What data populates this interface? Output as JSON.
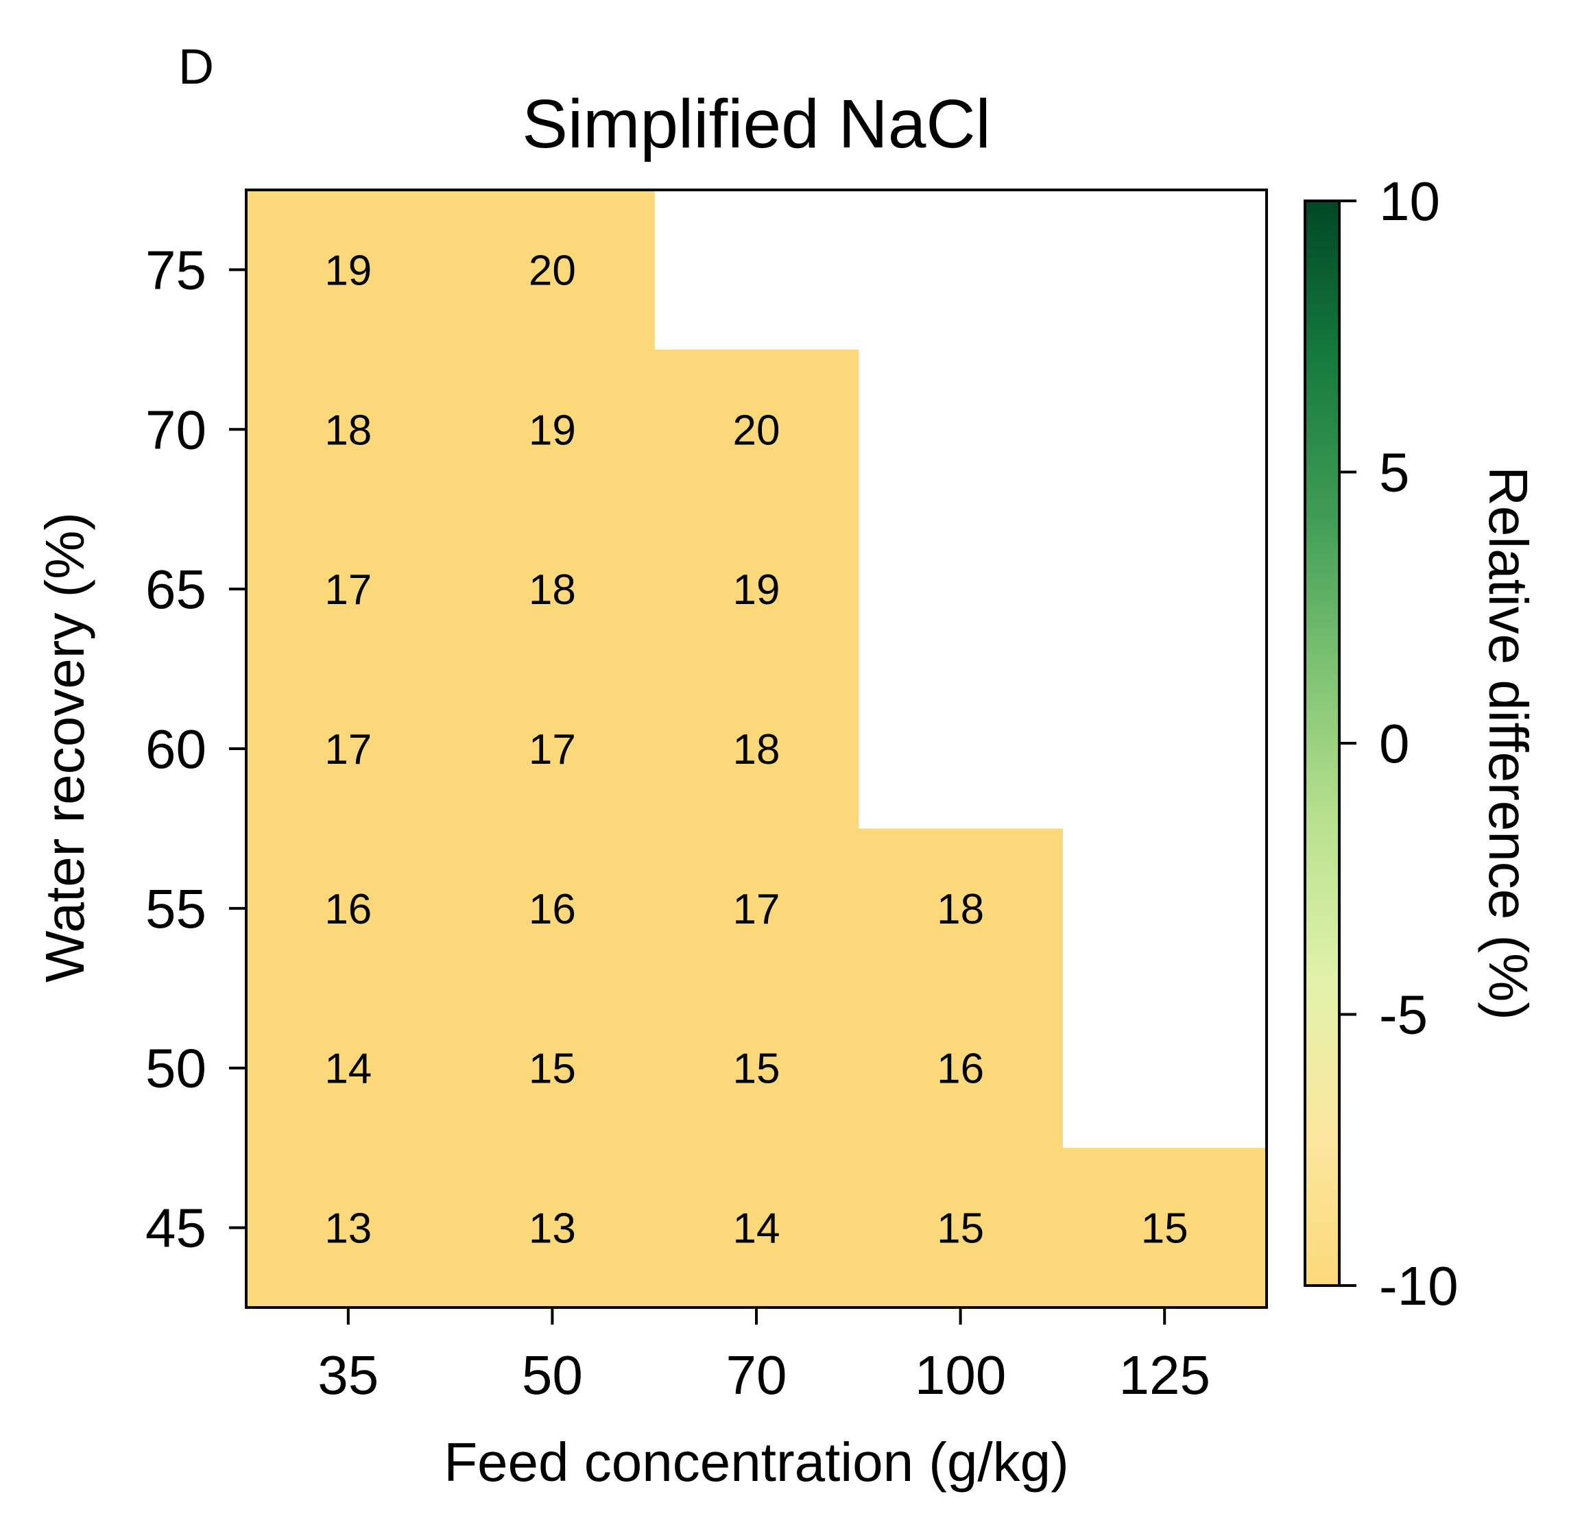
{
  "panel_label": "D",
  "chart_data": {
    "type": "heatmap",
    "title": "Simplified NaCl",
    "xlabel": "Feed concentration (g/kg)",
    "ylabel": "Water recovery (%)",
    "x_categories": [
      "35",
      "50",
      "70",
      "100",
      "125"
    ],
    "y_categories": [
      "75",
      "70",
      "65",
      "60",
      "55",
      "50",
      "45"
    ],
    "values": [
      [
        19,
        20,
        null,
        null,
        null
      ],
      [
        18,
        19,
        20,
        null,
        null
      ],
      [
        17,
        18,
        19,
        null,
        null
      ],
      [
        17,
        17,
        18,
        null,
        null
      ],
      [
        16,
        16,
        17,
        18,
        null
      ],
      [
        14,
        15,
        15,
        16,
        null
      ],
      [
        13,
        13,
        14,
        15,
        15
      ]
    ],
    "colorbar": {
      "label": "Relative difference (%)",
      "min": -10,
      "max": 10,
      "ticks": [
        "10",
        "5",
        "0",
        "-5",
        "-10"
      ],
      "tick_values": [
        10,
        5,
        0,
        -5,
        -10
      ],
      "colors": [
        "#fcd97a",
        "#fbe7a0",
        "#e0f1aa",
        "#b8e18f",
        "#7cc272",
        "#3e9b54",
        "#157a3d",
        "#004726"
      ]
    },
    "cell_color": "#fbd879",
    "missing_color": "#ffffff",
    "grid": false
  }
}
